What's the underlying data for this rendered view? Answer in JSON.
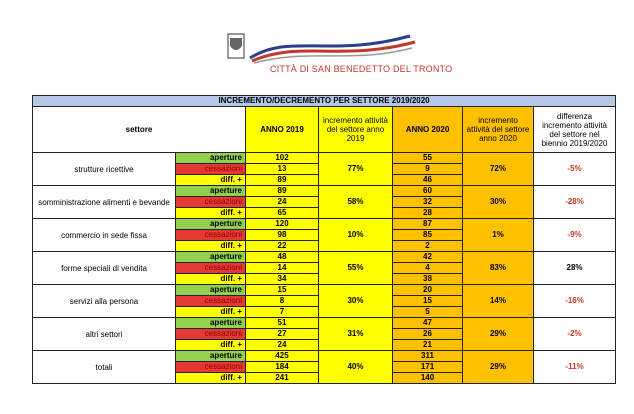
{
  "header": {
    "city": "CITTÀ DI SAN BENEDETTO DEL TRONTO"
  },
  "table": {
    "title": "INCREMENTO/DECREMENTO PER SETTORE 2019/2020",
    "columns": [
      "settore",
      "ANNO 2019",
      "incremento attività del settore anno 2019",
      "ANNO 2020",
      "incremento attività del settore anno 2020",
      "differenza incremento attività del settore nel biennio 2019/2020"
    ],
    "sectors": [
      {
        "name": "strutture ricettive",
        "rows": [
          {
            "label": "aperture",
            "y2019": 102,
            "y2020": 55
          },
          {
            "label": "cessazioni",
            "y2019": 13,
            "y2020": 9
          },
          {
            "label": "diff. +",
            "y2019": 89,
            "y2020": 46
          }
        ],
        "incr2019": "77%",
        "incr2020": "72%",
        "diff": "-5%"
      },
      {
        "name": "somministrazione alimenti e bevande",
        "rows": [
          {
            "label": "aperture",
            "y2019": 89,
            "y2020": 60
          },
          {
            "label": "cessazioni",
            "y2019": 24,
            "y2020": 32
          },
          {
            "label": "diff. +",
            "y2019": 65,
            "y2020": 28
          }
        ],
        "incr2019": "58%",
        "incr2020": "30%",
        "diff": "-28%"
      },
      {
        "name": "commercio in sede fissa",
        "rows": [
          {
            "label": "aperture",
            "y2019": 120,
            "y2020": 87
          },
          {
            "label": "cessazioni",
            "y2019": 98,
            "y2020": 85
          },
          {
            "label": "diff. +",
            "y2019": 22,
            "y2020": 2
          }
        ],
        "incr2019": "10%",
        "incr2020": "1%",
        "diff": "-9%"
      },
      {
        "name": "forme speciali di vendita",
        "rows": [
          {
            "label": "aperture",
            "y2019": 48,
            "y2020": 42
          },
          {
            "label": "cessazioni",
            "y2019": 14,
            "y2020": 4
          },
          {
            "label": "diff. +",
            "y2019": 34,
            "y2020": 38
          }
        ],
        "incr2019": "55%",
        "incr2020": "83%",
        "diff": "28%"
      },
      {
        "name": "servizi alla persona",
        "rows": [
          {
            "label": "aperture",
            "y2019": 15,
            "y2020": 20
          },
          {
            "label": "cessazioni",
            "y2019": 8,
            "y2020": 15
          },
          {
            "label": "diff. +",
            "y2019": 7,
            "y2020": 5
          }
        ],
        "incr2019": "30%",
        "incr2020": "14%",
        "diff": "-16%"
      },
      {
        "name": "altri settori",
        "rows": [
          {
            "label": "aperture",
            "y2019": 51,
            "y2020": 47
          },
          {
            "label": "cessazioni",
            "y2019": 27,
            "y2020": 26
          },
          {
            "label": "diff. +",
            "y2019": 24,
            "y2020": 21
          }
        ],
        "incr2019": "31%",
        "incr2020": "29%",
        "diff": "-2%"
      },
      {
        "name": "totali",
        "rows": [
          {
            "label": "aperture",
            "y2019": 425,
            "y2020": 311
          },
          {
            "label": "cessazioni",
            "y2019": 184,
            "y2020": 171
          },
          {
            "label": "diff. +",
            "y2019": 241,
            "y2020": 140
          }
        ],
        "incr2019": "40%",
        "incr2020": "29%",
        "diff": "-11%"
      }
    ]
  }
}
